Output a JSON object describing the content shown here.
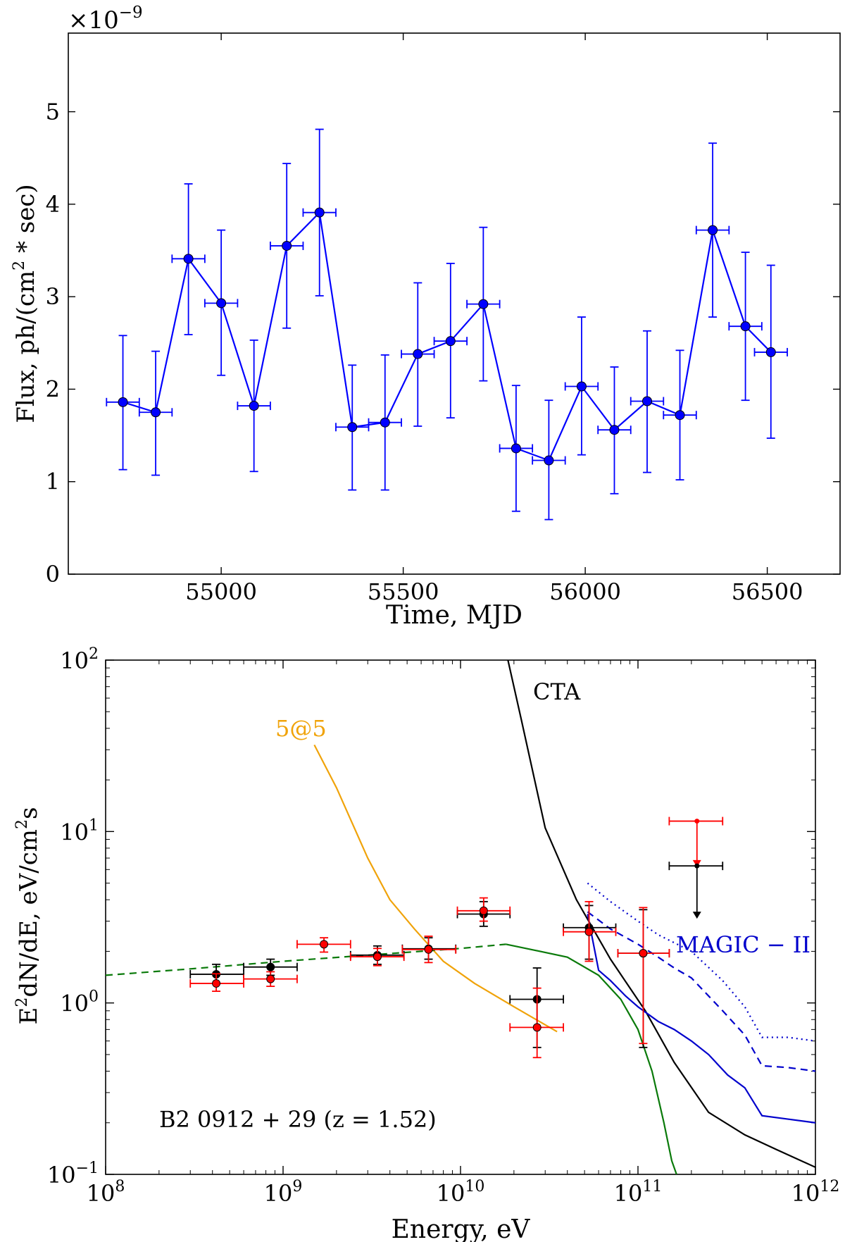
{
  "chart_data": [
    {
      "type": "line",
      "xlabel": "Time,  MJD",
      "ylabel": "Flux,  ph/(cm",
      "ylabel_sup": "2",
      "ylabel_tail": " * sec)",
      "y_multiplier_base": "×10",
      "y_multiplier_exp": "−9",
      "xlim": [
        54580,
        56700
      ],
      "ylim": [
        0,
        5.85
      ],
      "xticks": [
        55000,
        55500,
        56000,
        56500
      ],
      "xtick_labels": [
        "55000",
        "55500",
        "56000",
        "56500"
      ],
      "yticks": [
        0,
        1,
        2,
        3,
        4,
        5
      ],
      "ytick_labels": [
        "0",
        "1",
        "2",
        "3",
        "4",
        "5"
      ],
      "x_halfwidth": 45,
      "series": [
        {
          "name": "flux",
          "color": "#0000ff",
          "x": [
            54730,
            54820,
            54910,
            55000,
            55090,
            55180,
            55270,
            55360,
            55450,
            55540,
            55630,
            55720,
            55810,
            55900,
            55990,
            56080,
            56170,
            56260,
            56350,
            56440,
            56510
          ],
          "y": [
            1.86,
            1.75,
            3.41,
            2.93,
            1.82,
            3.55,
            3.91,
            1.59,
            1.64,
            2.38,
            2.52,
            2.92,
            1.36,
            1.23,
            2.03,
            1.56,
            1.87,
            1.72,
            3.72,
            2.68,
            2.4
          ],
          "err_low": [
            1.13,
            1.07,
            2.59,
            2.15,
            1.11,
            2.66,
            3.01,
            0.91,
            0.91,
            1.6,
            1.69,
            2.09,
            0.68,
            0.59,
            1.29,
            0.87,
            1.1,
            1.02,
            2.78,
            1.88,
            1.47
          ],
          "err_high": [
            2.58,
            2.41,
            4.22,
            3.72,
            2.53,
            4.44,
            4.81,
            2.26,
            2.37,
            3.15,
            3.36,
            3.75,
            2.04,
            1.88,
            2.78,
            2.24,
            2.63,
            2.42,
            4.66,
            3.48,
            3.34
          ]
        }
      ]
    },
    {
      "type": "scatter",
      "xscale": "log",
      "yscale": "log",
      "xlabel": "Energy,  eV",
      "ylabel_parts": [
        "E",
        "2",
        "dN/dE,  eV/cm",
        "2",
        "s"
      ],
      "xlim": [
        100000000.0,
        1000000000000.0
      ],
      "ylim": [
        0.1,
        100
      ],
      "xtick_base": "10",
      "xtick_exps": [
        "8",
        "9",
        "10",
        "11",
        "12"
      ],
      "xtick_values": [
        100000000.0,
        1000000000.0,
        10000000000.0,
        100000000000.0,
        1000000000000.0
      ],
      "ytick_base": "10",
      "ytick_exps": [
        "−1",
        "0",
        "1",
        "2"
      ],
      "ytick_values": [
        0.1,
        1,
        10,
        100
      ],
      "annotations": {
        "source_label": "B2 0912 + 29 (z = 1.52)",
        "cta_label": "CTA",
        "magic_label": "MAGIC − II",
        "fivefive_label": "5@5"
      },
      "colors": {
        "cta": "#000000",
        "magic": "#0000cc",
        "fivefive": "#f0a30a",
        "model": "#0a7a0a",
        "red_points": "#ff0000",
        "black_points": "#000000"
      },
      "curves": [
        {
          "name": "CTA",
          "style": "solid",
          "x": [
            18500000000.0,
            22000000000.0,
            30000000000.0,
            45000000000.0,
            70000000000.0,
            110000000000.0,
            160000000000.0,
            250000000000.0,
            400000000000.0,
            600000000000.0,
            1000000000000.0
          ],
          "y": [
            100,
            45,
            10.5,
            4.0,
            1.8,
            0.9,
            0.45,
            0.23,
            0.17,
            0.14,
            0.11
          ]
        },
        {
          "name": "MAGIC-II",
          "style": "solid",
          "x": [
            52000000000.0,
            60000000000.0,
            70000000000.0,
            85000000000.0,
            100000000000.0,
            130000000000.0,
            160000000000.0,
            200000000000.0,
            250000000000.0,
            320000000000.0,
            400000000000.0,
            500000000000.0,
            700000000000.0,
            1000000000000.0
          ],
          "y": [
            3.3,
            1.55,
            1.35,
            1.1,
            0.95,
            0.78,
            0.7,
            0.6,
            0.5,
            0.38,
            0.32,
            0.22,
            0.21,
            0.2
          ]
        },
        {
          "name": "MAGIC-II",
          "style": "dashed",
          "x": [
            52000000000.0,
            70000000000.0,
            100000000000.0,
            130000000000.0,
            160000000000.0,
            200000000000.0,
            300000000000.0,
            400000000000.0,
            500000000000.0,
            700000000000.0,
            1000000000000.0
          ],
          "y": [
            3.4,
            2.7,
            2.2,
            1.85,
            1.6,
            1.4,
            0.9,
            0.65,
            0.43,
            0.42,
            0.4
          ]
        },
        {
          "name": "MAGIC-II",
          "style": "dotted",
          "x": [
            52000000000.0,
            70000000000.0,
            100000000000.0,
            130000000000.0,
            200000000000.0,
            300000000000.0,
            400000000000.0,
            500000000000.0,
            700000000000.0,
            1000000000000.0
          ],
          "y": [
            5.0,
            3.9,
            3.0,
            2.5,
            2.0,
            1.35,
            0.95,
            0.63,
            0.63,
            0.6
          ]
        },
        {
          "name": "5@5",
          "style": "solid",
          "x": [
            1500000000.0,
            2000000000.0,
            3000000000.0,
            4000000000.0,
            5500000000.0,
            8000000000.0,
            12000000000.0,
            20000000000.0,
            35000000000.0
          ],
          "y": [
            32,
            18,
            7,
            4.0,
            2.7,
            1.75,
            1.3,
            0.95,
            0.68
          ]
        },
        {
          "name": "model",
          "style": "dashed",
          "x": [
            100000000.0,
            300000000.0,
            1000000000.0,
            3000000000.0,
            10000000000.0,
            18000000000.0
          ],
          "y": [
            1.45,
            1.58,
            1.75,
            1.9,
            2.08,
            2.2
          ]
        },
        {
          "name": "model",
          "style": "solid",
          "x": [
            18000000000.0,
            25000000000.0,
            40000000000.0,
            60000000000.0,
            80000000000.0,
            100000000000.0,
            120000000000.0,
            140000000000.0,
            155000000000.0,
            165000000000.0
          ],
          "y": [
            2.2,
            2.05,
            1.85,
            1.45,
            1.05,
            0.7,
            0.4,
            0.2,
            0.12,
            0.1
          ]
        }
      ],
      "points_black": {
        "x": [
          420000000.0,
          850000000.0,
          3400000000.0,
          6600000000.0,
          13500000000.0,
          27000000000.0,
          53000000000.0,
          107000000000.0
        ],
        "y": [
          1.47,
          1.62,
          1.9,
          2.07,
          3.3,
          1.05,
          2.75,
          1.95
        ],
        "x_lo": [
          300000000.0,
          600000000.0,
          2400000000.0,
          4700000000.0,
          9600000000.0,
          19000000000.0,
          38000000000.0,
          77000000000.0
        ],
        "x_hi": [
          600000000.0,
          1200000000.0,
          4800000000.0,
          9400000000.0,
          19000000000.0,
          38000000000.0,
          75000000000.0,
          150000000000.0
        ],
        "y_lo": [
          1.3,
          1.45,
          1.68,
          1.8,
          2.8,
          0.55,
          1.8,
          0.55
        ],
        "y_hi": [
          1.68,
          1.8,
          2.15,
          2.4,
          3.9,
          1.6,
          3.7,
          3.5
        ]
      },
      "points_red": {
        "x": [
          420000000.0,
          850000000.0,
          1700000000.0,
          3400000000.0,
          6600000000.0,
          13500000000.0,
          27000000000.0,
          53000000000.0,
          107000000000.0
        ],
        "y": [
          1.3,
          1.38,
          2.2,
          1.86,
          2.05,
          3.45,
          0.72,
          2.6,
          1.95
        ],
        "x_lo": [
          300000000.0,
          600000000.0,
          1200000000.0,
          2400000000.0,
          4700000000.0,
          9600000000.0,
          19000000000.0,
          38000000000.0,
          77000000000.0
        ],
        "x_hi": [
          600000000.0,
          1200000000.0,
          2400000000.0,
          4800000000.0,
          9400000000.0,
          19000000000.0,
          38000000000.0,
          75000000000.0,
          150000000000.0
        ],
        "y_lo": [
          1.17,
          1.25,
          1.98,
          1.65,
          1.72,
          3.0,
          0.48,
          1.75,
          0.58
        ],
        "y_hi": [
          1.48,
          1.52,
          2.4,
          2.08,
          2.45,
          4.1,
          1.22,
          3.9,
          3.6
        ]
      },
      "upper_limits": [
        {
          "color": "red",
          "x": 215000000000.0,
          "x_lo": 150000000000.0,
          "x_hi": 300000000000.0,
          "y_top": 11.5,
          "y_bottom": 6.2
        },
        {
          "color": "black",
          "x": 215000000000.0,
          "x_lo": 150000000000.0,
          "x_hi": 300000000000.0,
          "y_top": 6.3,
          "y_bottom": 3.1
        }
      ]
    }
  ]
}
